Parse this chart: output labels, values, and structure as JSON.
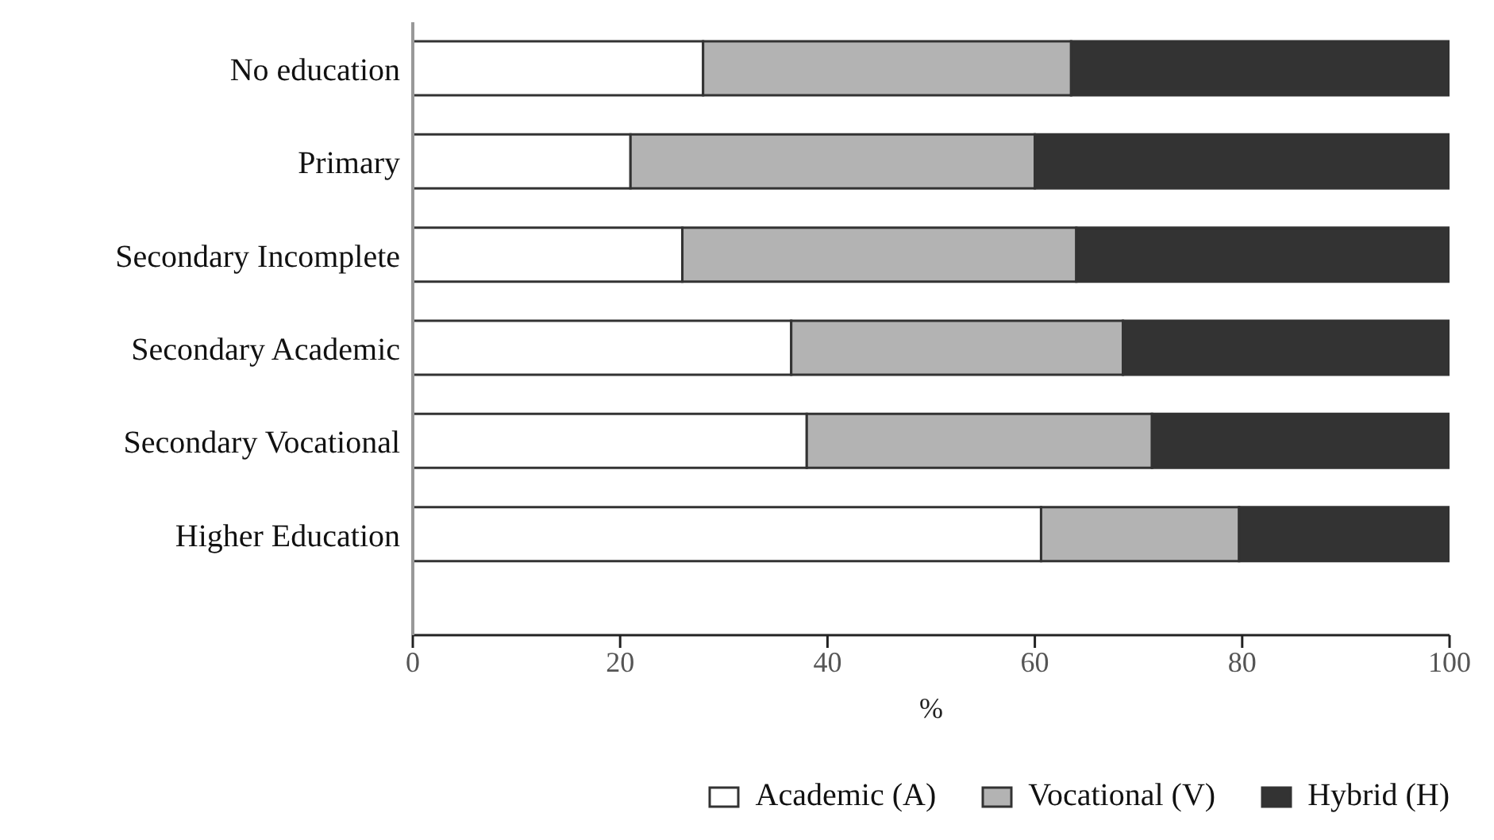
{
  "chart_data": {
    "type": "bar",
    "orientation": "horizontal",
    "stacked": true,
    "xlabel": "%",
    "categories": [
      "No education",
      "Primary",
      "Secondary Incomplete",
      "Secondary Academic",
      "Secondary Vocational",
      "Higher Education"
    ],
    "series": [
      {
        "name": "Academic (A)",
        "color": "#ffffff",
        "values": [
          28,
          21,
          26,
          36.5,
          38,
          60.6
        ]
      },
      {
        "name": "Vocational (V)",
        "color": "#b3b3b3",
        "values": [
          35.5,
          39,
          38,
          32,
          33.3,
          19.1
        ]
      },
      {
        "name": "Hybrid (H)",
        "color": "#333333",
        "values": [
          36.5,
          40,
          36,
          31.5,
          28.7,
          20.3
        ]
      }
    ],
    "xlim": [
      0,
      100
    ],
    "xticks": [
      0,
      20,
      40,
      60,
      80,
      100
    ],
    "grid": false,
    "legend": "bottom right"
  }
}
